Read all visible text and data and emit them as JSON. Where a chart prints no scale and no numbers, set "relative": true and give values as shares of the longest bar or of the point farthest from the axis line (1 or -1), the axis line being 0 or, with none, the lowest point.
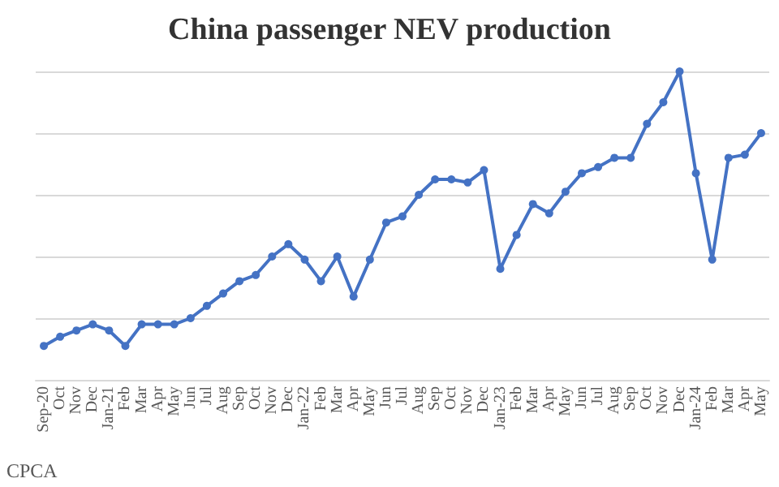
{
  "chart_data": {
    "type": "line",
    "title": "China passenger NEV production",
    "relative": true,
    "grid": "y",
    "marker": "circle",
    "line_style": "solid",
    "categories": [
      "Sep-20",
      "Oct",
      "Nov",
      "Dec",
      "Jan-21",
      "Feb",
      "Mar",
      "Apr",
      "May",
      "Jun",
      "Jul",
      "Aug",
      "Sep",
      "Oct",
      "Nov",
      "Dec",
      "Jan-22",
      "Feb",
      "Mar",
      "Apr",
      "May",
      "Jun",
      "Jul",
      "Aug",
      "Sep",
      "Oct",
      "Nov",
      "Dec",
      "Jan-23",
      "Feb",
      "Mar",
      "Apr",
      "May",
      "Jun",
      "Jul",
      "Aug",
      "Sep",
      "Oct",
      "Nov",
      "Dec",
      "Jan-24",
      "Feb",
      "Mar",
      "Apr",
      "May"
    ],
    "series": [
      {
        "color": "#4472c4",
        "values": [
          0.11,
          0.14,
          0.16,
          0.18,
          0.16,
          0.11,
          0.18,
          0.18,
          0.18,
          0.2,
          0.24,
          0.28,
          0.32,
          0.34,
          0.4,
          0.44,
          0.39,
          0.32,
          0.4,
          0.27,
          0.39,
          0.51,
          0.53,
          0.6,
          0.65,
          0.65,
          0.64,
          0.68,
          0.36,
          0.47,
          0.57,
          0.54,
          0.61,
          0.67,
          0.69,
          0.72,
          0.72,
          0.83,
          0.9,
          1,
          0.67,
          0.39,
          0.72,
          0.73,
          0.8
        ]
      }
    ],
    "annotations": [
      "CPCA"
    ]
  }
}
